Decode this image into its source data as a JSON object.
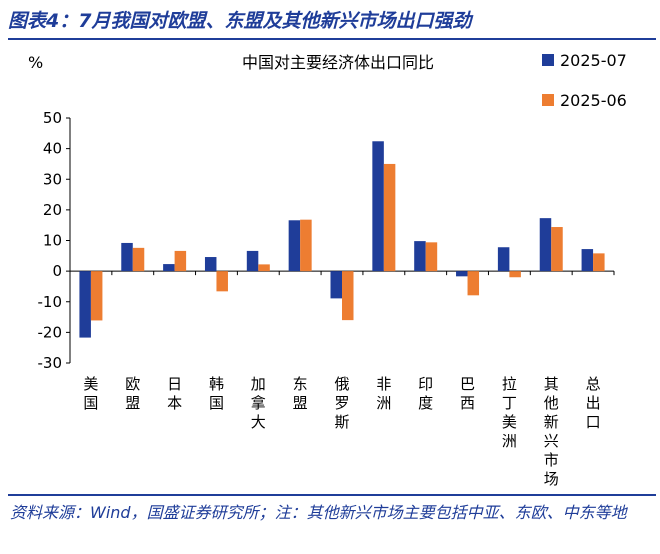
{
  "figure_title": "图表4：7月我国对欧盟、东盟及其他新兴市场出口强劲",
  "source_note": "资料来源：Wind，国盛证券研究所；注：其他新兴市场主要包括中亚、东欧、中东等地",
  "chart_data": {
    "type": "bar",
    "title": "中国对主要经济体出口同比",
    "ylabel": "%",
    "xlabel": "",
    "ylim": [
      -30,
      50
    ],
    "yticks": [
      -30,
      -20,
      -10,
      0,
      10,
      20,
      30,
      40,
      50
    ],
    "grid": false,
    "legend_position": "top-right",
    "categories": [
      "美国",
      "欧盟",
      "日本",
      "韩国",
      "加拿大",
      "东盟",
      "俄罗斯",
      "非洲",
      "印度",
      "巴西",
      "拉丁美洲",
      "其他新兴市场",
      "总出口"
    ],
    "series": [
      {
        "name": "2025-07",
        "color": "#1f3d99",
        "values": [
          -21.7,
          9.2,
          2.3,
          4.6,
          6.6,
          16.6,
          -8.9,
          42.4,
          9.8,
          -1.7,
          7.8,
          17.3,
          7.2
        ]
      },
      {
        "name": "2025-06",
        "color": "#ed7d31",
        "values": [
          -16.1,
          7.6,
          6.6,
          -6.6,
          2.2,
          16.8,
          -16.0,
          35.0,
          9.4,
          -7.9,
          -2.0,
          14.4,
          5.8
        ]
      }
    ]
  }
}
